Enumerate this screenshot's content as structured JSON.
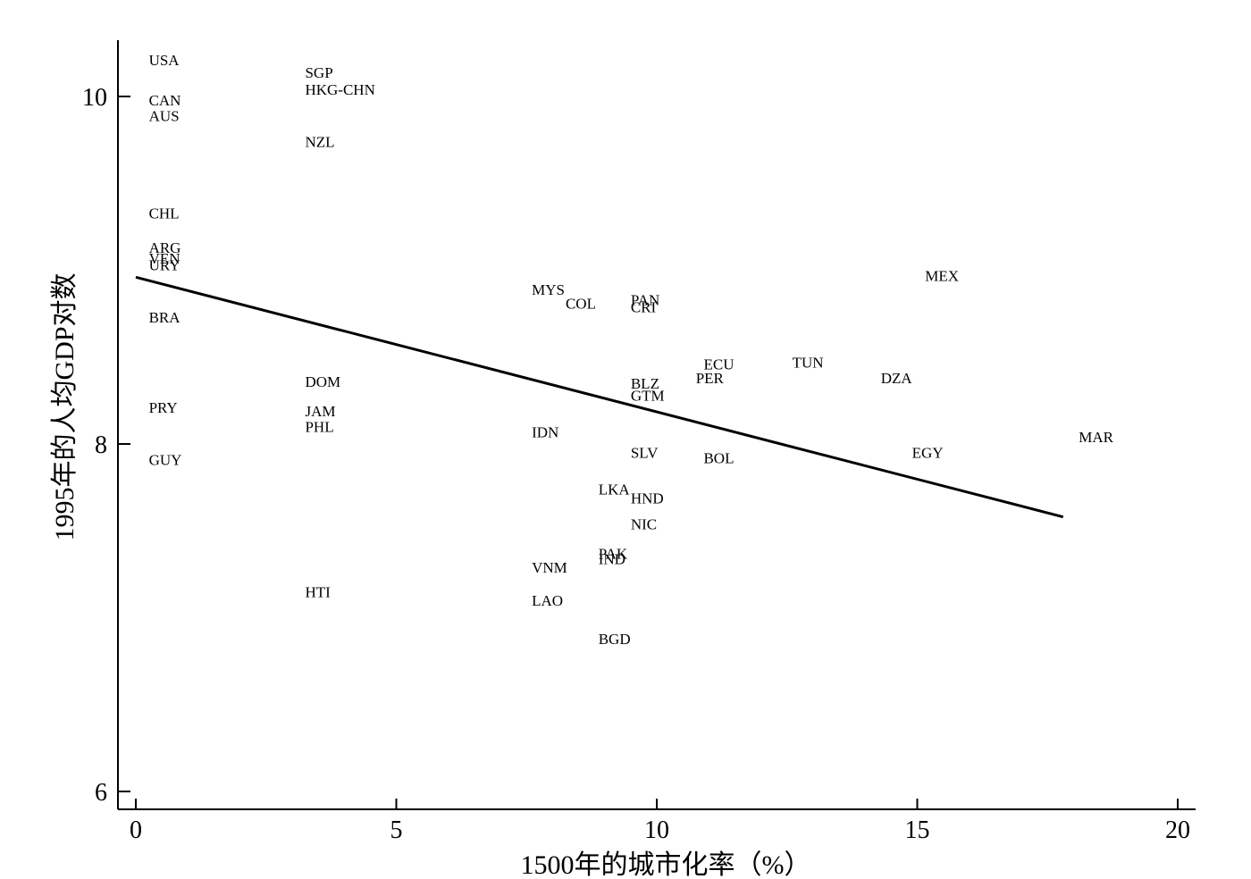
{
  "chart_data": {
    "type": "scatter",
    "title": "",
    "xlabel": "1500年的城市化率（%）",
    "ylabel": "1995年的人均GDP对数",
    "xlim": [
      -0.4,
      20.4
    ],
    "ylim": [
      5.9,
      10.35
    ],
    "x_ticks": [
      0,
      5,
      10,
      15,
      20
    ],
    "x_tick_labels": [
      "0",
      "5",
      "10",
      "15",
      "20"
    ],
    "y_ticks": [
      6,
      8,
      10
    ],
    "y_tick_labels": [
      "6",
      "8",
      "10"
    ],
    "grid": false,
    "points": [
      {
        "label": "USA",
        "x": 0.25,
        "y": 10.21
      },
      {
        "label": "CAN",
        "x": 0.25,
        "y": 9.98
      },
      {
        "label": "AUS",
        "x": 0.25,
        "y": 9.89
      },
      {
        "label": "CHL",
        "x": 0.25,
        "y": 9.33
      },
      {
        "label": "ARG",
        "x": 0.25,
        "y": 9.13
      },
      {
        "label": "VEN",
        "x": 0.25,
        "y": 9.07
      },
      {
        "label": "URY",
        "x": 0.25,
        "y": 9.03
      },
      {
        "label": "BRA",
        "x": 0.25,
        "y": 8.73
      },
      {
        "label": "PRY",
        "x": 0.25,
        "y": 8.21
      },
      {
        "label": "GUY",
        "x": 0.25,
        "y": 7.91
      },
      {
        "label": "SGP",
        "x": 3.25,
        "y": 10.14
      },
      {
        "label": "HKG-CHN",
        "x": 3.25,
        "y": 10.04
      },
      {
        "label": "NZL",
        "x": 3.25,
        "y": 9.74
      },
      {
        "label": "DOM",
        "x": 3.25,
        "y": 8.36
      },
      {
        "label": "JAM",
        "x": 3.25,
        "y": 8.19
      },
      {
        "label": "PHL",
        "x": 3.25,
        "y": 8.1
      },
      {
        "label": "HTI",
        "x": 3.25,
        "y": 7.15
      },
      {
        "label": "MYS",
        "x": 7.6,
        "y": 8.89
      },
      {
        "label": "COL",
        "x": 8.25,
        "y": 8.81
      },
      {
        "label": "IDN",
        "x": 7.6,
        "y": 8.07
      },
      {
        "label": "VNM",
        "x": 7.6,
        "y": 7.29
      },
      {
        "label": "LAO",
        "x": 7.6,
        "y": 7.1
      },
      {
        "label": "LKA",
        "x": 8.88,
        "y": 7.74
      },
      {
        "label": "PAK",
        "x": 8.88,
        "y": 7.37
      },
      {
        "label": "IND",
        "x": 8.88,
        "y": 7.34
      },
      {
        "label": "BGD",
        "x": 8.88,
        "y": 6.88
      },
      {
        "label": "PAN",
        "x": 9.5,
        "y": 8.83
      },
      {
        "label": "CRI",
        "x": 9.5,
        "y": 8.79
      },
      {
        "label": "BLZ",
        "x": 9.5,
        "y": 8.35
      },
      {
        "label": "GTM",
        "x": 9.5,
        "y": 8.28
      },
      {
        "label": "SLV",
        "x": 9.5,
        "y": 7.95
      },
      {
        "label": "HND",
        "x": 9.5,
        "y": 7.69
      },
      {
        "label": "NIC",
        "x": 9.5,
        "y": 7.54
      },
      {
        "label": "ECU",
        "x": 10.9,
        "y": 8.46
      },
      {
        "label": "PER",
        "x": 10.75,
        "y": 8.38
      },
      {
        "label": "BOL",
        "x": 10.9,
        "y": 7.92
      },
      {
        "label": "TUN",
        "x": 12.6,
        "y": 8.47
      },
      {
        "label": "DZA",
        "x": 14.3,
        "y": 8.38
      },
      {
        "label": "EGY",
        "x": 14.9,
        "y": 7.95
      },
      {
        "label": "MEX",
        "x": 15.15,
        "y": 8.97
      },
      {
        "label": "MAR",
        "x": 18.1,
        "y": 8.04
      }
    ],
    "fit_line": {
      "x": [
        0,
        17.8
      ],
      "y": [
        8.96,
        7.58
      ]
    }
  }
}
